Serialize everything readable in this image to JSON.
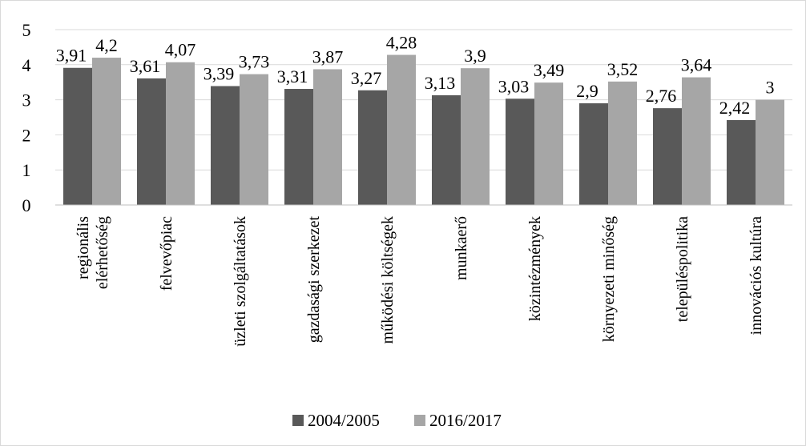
{
  "chart_data": {
    "type": "bar",
    "categories": [
      [
        "regionális",
        "elérhetőség"
      ],
      [
        "felvevőpiac"
      ],
      [
        "üzleti szolgáltatások"
      ],
      [
        "gazdasági szerkezet"
      ],
      [
        "működési költségek"
      ],
      [
        "munkaerő"
      ],
      [
        "közintézmények"
      ],
      [
        "környezeti minőség"
      ],
      [
        "településpolitika"
      ],
      [
        "innovációs kultúra"
      ]
    ],
    "series": [
      {
        "name": "2004/2005",
        "color": "#595959",
        "values": [
          3.91,
          3.61,
          3.39,
          3.31,
          3.27,
          3.13,
          3.03,
          2.9,
          2.76,
          2.42
        ],
        "labels": [
          "3,91",
          "3,61",
          "3,39",
          "3,31",
          "3,27",
          "3,13",
          "3,03",
          "2,9",
          "2,76",
          "2,42"
        ]
      },
      {
        "name": "2016/2017",
        "color": "#a6a6a6",
        "values": [
          4.2,
          4.07,
          3.73,
          3.87,
          4.28,
          3.9,
          3.49,
          3.52,
          3.64,
          3.0
        ],
        "labels": [
          "4,2",
          "4,07",
          "3,73",
          "3,87",
          "4,28",
          "3,9",
          "3,49",
          "3,52",
          "3,64",
          "3"
        ]
      }
    ],
    "ylim": [
      0,
      5
    ],
    "yticks": [
      "0",
      "1",
      "2",
      "3",
      "4",
      "5"
    ],
    "grid": true,
    "legend": "bottom",
    "title": "",
    "xlabel": "",
    "ylabel": ""
  }
}
